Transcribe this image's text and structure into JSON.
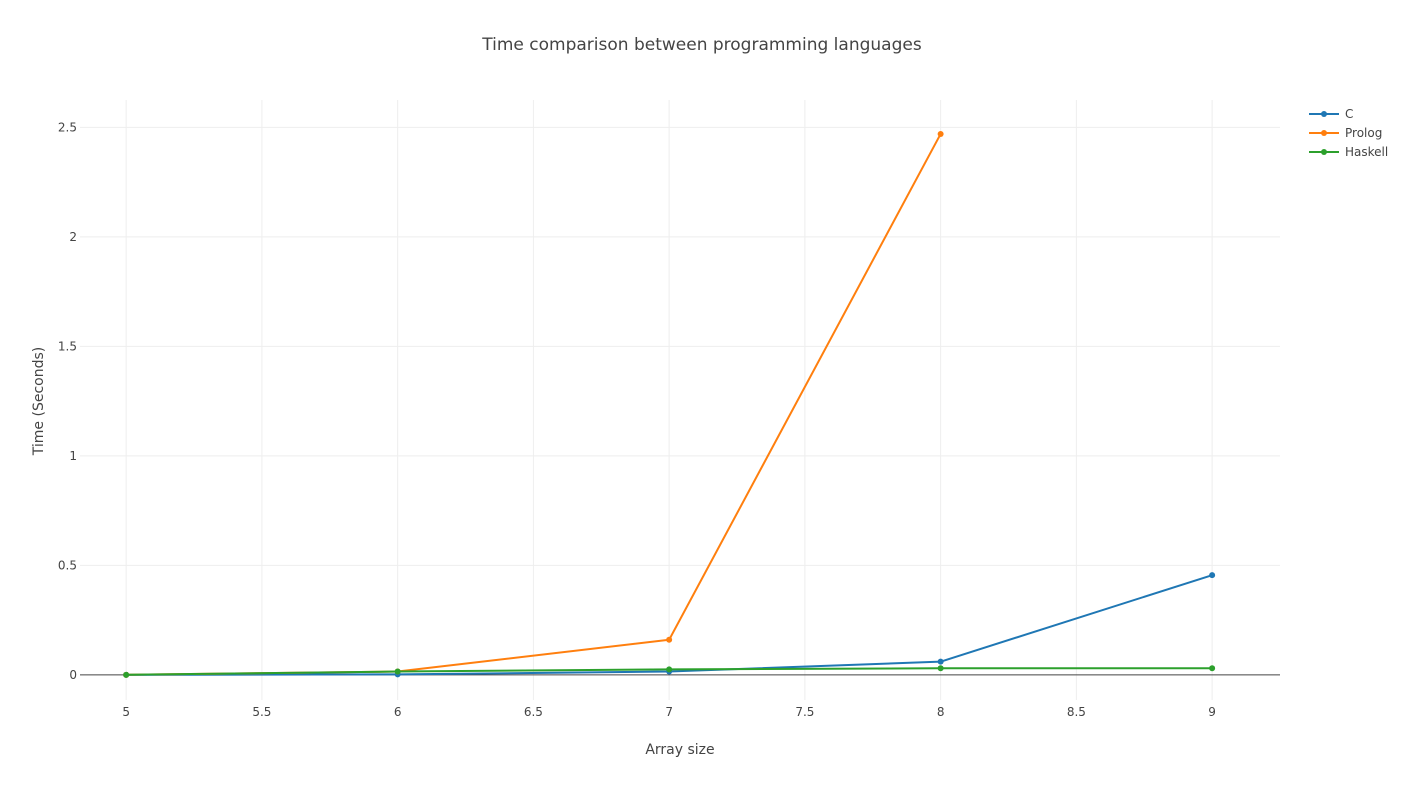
{
  "chart_data": {
    "type": "line",
    "title": "Time comparison between programming languages",
    "xlabel": "Array size",
    "ylabel": "Time (Seconds)",
    "xlim": [
      4.83,
      9.25
    ],
    "ylim": [
      -0.115,
      2.625
    ],
    "x_ticks": [
      5,
      5.5,
      6,
      6.5,
      7,
      7.5,
      8,
      8.5,
      9
    ],
    "x_tick_labels": [
      "5",
      "5.5",
      "6",
      "6.5",
      "7",
      "7.5",
      "8",
      "8.5",
      "9"
    ],
    "y_ticks": [
      0,
      0.5,
      1,
      1.5,
      2,
      2.5
    ],
    "y_tick_labels": [
      "0",
      "0.5",
      "1",
      "1.5",
      "2",
      "2.5"
    ],
    "grid": true,
    "legend_position": "top-right",
    "series": [
      {
        "name": "C",
        "color": "#1f77b4",
        "x": [
          5,
          6,
          7,
          8,
          9
        ],
        "y": [
          0.0,
          0.002,
          0.015,
          0.06,
          0.455
        ]
      },
      {
        "name": "Prolog",
        "color": "#ff7f0e",
        "x": [
          5,
          6,
          7,
          8
        ],
        "y": [
          0.0,
          0.015,
          0.16,
          2.47
        ]
      },
      {
        "name": "Haskell",
        "color": "#2ca02c",
        "x": [
          5,
          6,
          7,
          8,
          9
        ],
        "y": [
          0.0,
          0.015,
          0.025,
          0.03,
          0.03
        ]
      }
    ]
  }
}
